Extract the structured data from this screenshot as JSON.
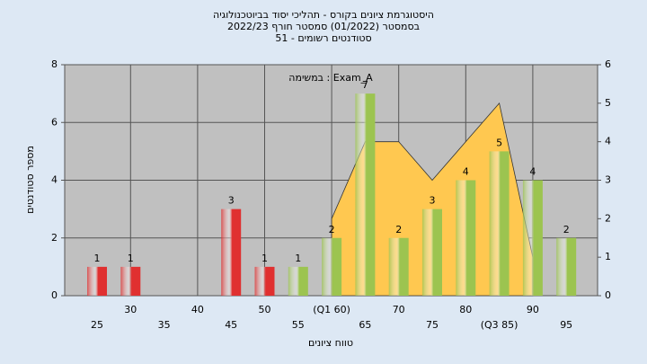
{
  "chart_data": {
    "type": "bar",
    "title": "היסטוגרמת ציונים בקורס - תהליכי יסוד בביוטכנולוגיה",
    "subtitle": "בסמסטר  (01/2022)  סמסטר חורף 2022/23",
    "subtitle2": "סטודנטים רשומים - 51",
    "annotation": "במשימה : Exam_A",
    "x_label": "טווח ציונים",
    "y_label": "מספר סטודנטים",
    "categories": [
      "25",
      "30",
      "35",
      "40",
      "45",
      "50",
      "55",
      "(Q1 60)",
      "65",
      "70",
      "75",
      "80",
      "(Q3 85)",
      "90",
      "95"
    ],
    "values": [
      1,
      1,
      0,
      0,
      3,
      1,
      1,
      2,
      7,
      2,
      3,
      4,
      5,
      4,
      2
    ],
    "colors": [
      "#e03030",
      "#e03030",
      "#e03030",
      "#e03030",
      "#e03030",
      "#e03030",
      "#9cc450",
      "#9cc450",
      "#9cc450",
      "#9cc450",
      "#9cc450",
      "#9cc450",
      "#9cc450",
      "#9cc450",
      "#9cc450"
    ],
    "area": {
      "color": "#ffc850",
      "axis": "y2",
      "values": [
        null,
        null,
        null,
        null,
        null,
        null,
        null,
        2,
        4,
        4,
        3,
        4,
        5,
        1,
        null
      ]
    },
    "ylim": [
      0,
      8
    ],
    "yticks": [
      0,
      2,
      4,
      6,
      8
    ],
    "y2lim": [
      0,
      6
    ],
    "y2ticks": [
      0,
      1,
      2,
      3,
      4,
      5,
      6
    ],
    "grid": true
  }
}
